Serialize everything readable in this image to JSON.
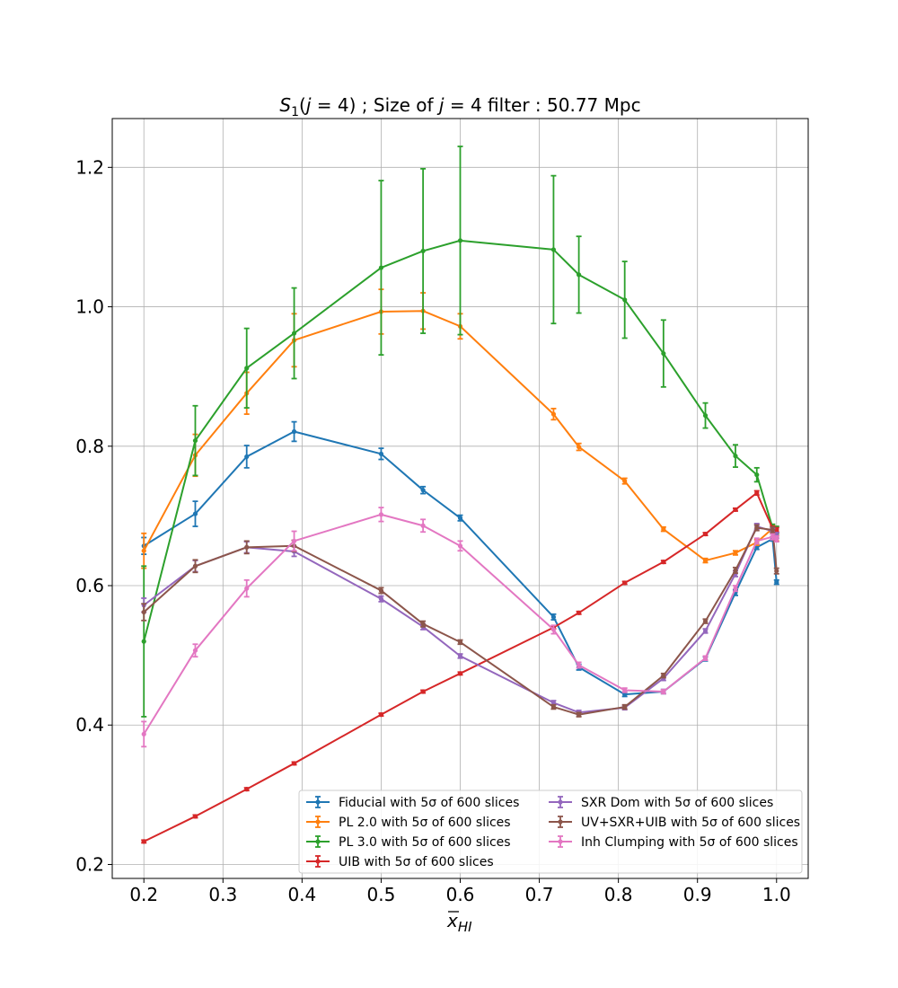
{
  "chart_data": {
    "type": "line",
    "title_parts": [
      "S",
      "1",
      "(",
      "j",
      " = 4) ; Size of ",
      "j",
      " = 4 filter : 50.77 Mpc"
    ],
    "xlabel_parts": [
      "x",
      "HI"
    ],
    "ylabel": "",
    "xlim": [
      0.16,
      1.04
    ],
    "ylim": [
      0.18,
      1.27
    ],
    "xticks": [
      0.2,
      0.3,
      0.4,
      0.5,
      0.6,
      0.7,
      0.8,
      0.9,
      1.0
    ],
    "xtick_labels": [
      "0.2",
      "0.3",
      "0.4",
      "0.5",
      "0.6",
      "0.7",
      "0.8",
      "0.9",
      "1.0"
    ],
    "yticks": [
      0.2,
      0.4,
      0.6,
      0.8,
      1.0,
      1.2
    ],
    "ytick_labels": [
      "0.2",
      "0.4",
      "0.6",
      "0.8",
      "1.0",
      "1.2"
    ],
    "grid": true,
    "legend_position": "lower-right",
    "legend_columns": 2,
    "series": [
      {
        "name": "Fiducial with 5σ of 600 slices",
        "color": "#1f77b4",
        "x": [
          0.2,
          0.265,
          0.33,
          0.39,
          0.5,
          0.553,
          0.6,
          0.718,
          0.75,
          0.808,
          0.857,
          0.91,
          0.948,
          0.975,
          0.995,
          1.0
        ],
        "y": [
          0.657,
          0.703,
          0.785,
          0.821,
          0.789,
          0.737,
          0.697,
          0.555,
          0.483,
          0.444,
          0.448,
          0.495,
          0.59,
          0.655,
          0.667,
          0.605
        ],
        "err": [
          0.012,
          0.018,
          0.016,
          0.014,
          0.008,
          0.005,
          0.004,
          0.004,
          0.004,
          0.003,
          0.003,
          0.003,
          0.004,
          0.003,
          0.003,
          0.003
        ]
      },
      {
        "name": "PL 2.0 with 5σ of 600 slices",
        "color": "#ff7f0e",
        "x": [
          0.2,
          0.265,
          0.33,
          0.39,
          0.5,
          0.553,
          0.6,
          0.718,
          0.75,
          0.808,
          0.857,
          0.91,
          0.948,
          0.975,
          0.995,
          1.0
        ],
        "y": [
          0.65,
          0.787,
          0.876,
          0.952,
          0.993,
          0.994,
          0.972,
          0.846,
          0.799,
          0.75,
          0.681,
          0.636,
          0.647,
          0.662,
          0.682,
          0.668
        ],
        "err": [
          0.025,
          0.03,
          0.03,
          0.038,
          0.032,
          0.026,
          0.018,
          0.008,
          0.005,
          0.004,
          0.003,
          0.003,
          0.003,
          0.004,
          0.004,
          0.004
        ]
      },
      {
        "name": "PL 3.0 with 5σ of 600 slices",
        "color": "#2ca02c",
        "x": [
          0.2,
          0.265,
          0.33,
          0.39,
          0.5,
          0.553,
          0.6,
          0.718,
          0.75,
          0.808,
          0.857,
          0.91,
          0.948,
          0.975,
          0.995,
          1.0
        ],
        "y": [
          0.52,
          0.808,
          0.912,
          0.962,
          1.056,
          1.08,
          1.095,
          1.082,
          1.046,
          1.01,
          0.933,
          0.844,
          0.786,
          0.759,
          0.683,
          0.68
        ],
        "err": [
          0.108,
          0.05,
          0.057,
          0.065,
          0.125,
          0.118,
          0.135,
          0.106,
          0.055,
          0.055,
          0.048,
          0.018,
          0.016,
          0.01,
          0.005,
          0.005
        ]
      },
      {
        "name": "UIB with 5σ of 600 slices",
        "color": "#d62728",
        "x": [
          0.2,
          0.265,
          0.33,
          0.39,
          0.5,
          0.553,
          0.6,
          0.718,
          0.75,
          0.808,
          0.857,
          0.91,
          0.948,
          0.975,
          0.995,
          1.0
        ],
        "y": [
          0.233,
          0.269,
          0.308,
          0.345,
          0.415,
          0.448,
          0.474,
          0.54,
          0.561,
          0.604,
          0.634,
          0.674,
          0.709,
          0.733,
          0.682,
          0.68
        ],
        "err": [
          0.002,
          0.002,
          0.002,
          0.002,
          0.002,
          0.002,
          0.002,
          0.002,
          0.002,
          0.002,
          0.002,
          0.002,
          0.002,
          0.003,
          0.003,
          0.003
        ]
      },
      {
        "name": "SXR Dom with 5σ of 600 slices",
        "color": "#9467bd",
        "x": [
          0.2,
          0.265,
          0.33,
          0.39,
          0.5,
          0.553,
          0.6,
          0.718,
          0.75,
          0.808,
          0.857,
          0.91,
          0.948,
          0.975,
          0.995,
          1.0
        ],
        "y": [
          0.572,
          0.628,
          0.655,
          0.649,
          0.581,
          0.541,
          0.499,
          0.432,
          0.418,
          0.425,
          0.467,
          0.535,
          0.617,
          0.685,
          0.678,
          0.672
        ],
        "err": [
          0.01,
          0.008,
          0.008,
          0.007,
          0.004,
          0.004,
          0.003,
          0.003,
          0.003,
          0.003,
          0.003,
          0.003,
          0.004,
          0.004,
          0.004,
          0.004
        ]
      },
      {
        "name": "UV+SXR+UIB with 5σ of 600 slices",
        "color": "#8c564b",
        "x": [
          0.2,
          0.265,
          0.33,
          0.39,
          0.5,
          0.553,
          0.6,
          0.718,
          0.75,
          0.808,
          0.857,
          0.91,
          0.948,
          0.975,
          0.995,
          1.0
        ],
        "y": [
          0.562,
          0.628,
          0.655,
          0.657,
          0.593,
          0.545,
          0.519,
          0.426,
          0.415,
          0.426,
          0.471,
          0.549,
          0.622,
          0.683,
          0.68,
          0.621
        ],
        "err": [
          0.012,
          0.009,
          0.009,
          0.008,
          0.004,
          0.004,
          0.003,
          0.003,
          0.003,
          0.003,
          0.003,
          0.003,
          0.004,
          0.004,
          0.004,
          0.004
        ]
      },
      {
        "name": "Inh Clumping with 5σ of 600 slices",
        "color": "#e377c2",
        "x": [
          0.2,
          0.265,
          0.33,
          0.39,
          0.5,
          0.553,
          0.6,
          0.718,
          0.75,
          0.808,
          0.857,
          0.91,
          0.948,
          0.975,
          0.995,
          1.0
        ],
        "y": [
          0.387,
          0.507,
          0.596,
          0.664,
          0.702,
          0.686,
          0.657,
          0.537,
          0.486,
          0.45,
          0.448,
          0.496,
          0.596,
          0.664,
          0.67,
          0.667
        ],
        "err": [
          0.018,
          0.009,
          0.012,
          0.014,
          0.01,
          0.009,
          0.007,
          0.006,
          0.004,
          0.003,
          0.003,
          0.003,
          0.004,
          0.004,
          0.004,
          0.004
        ]
      }
    ]
  }
}
